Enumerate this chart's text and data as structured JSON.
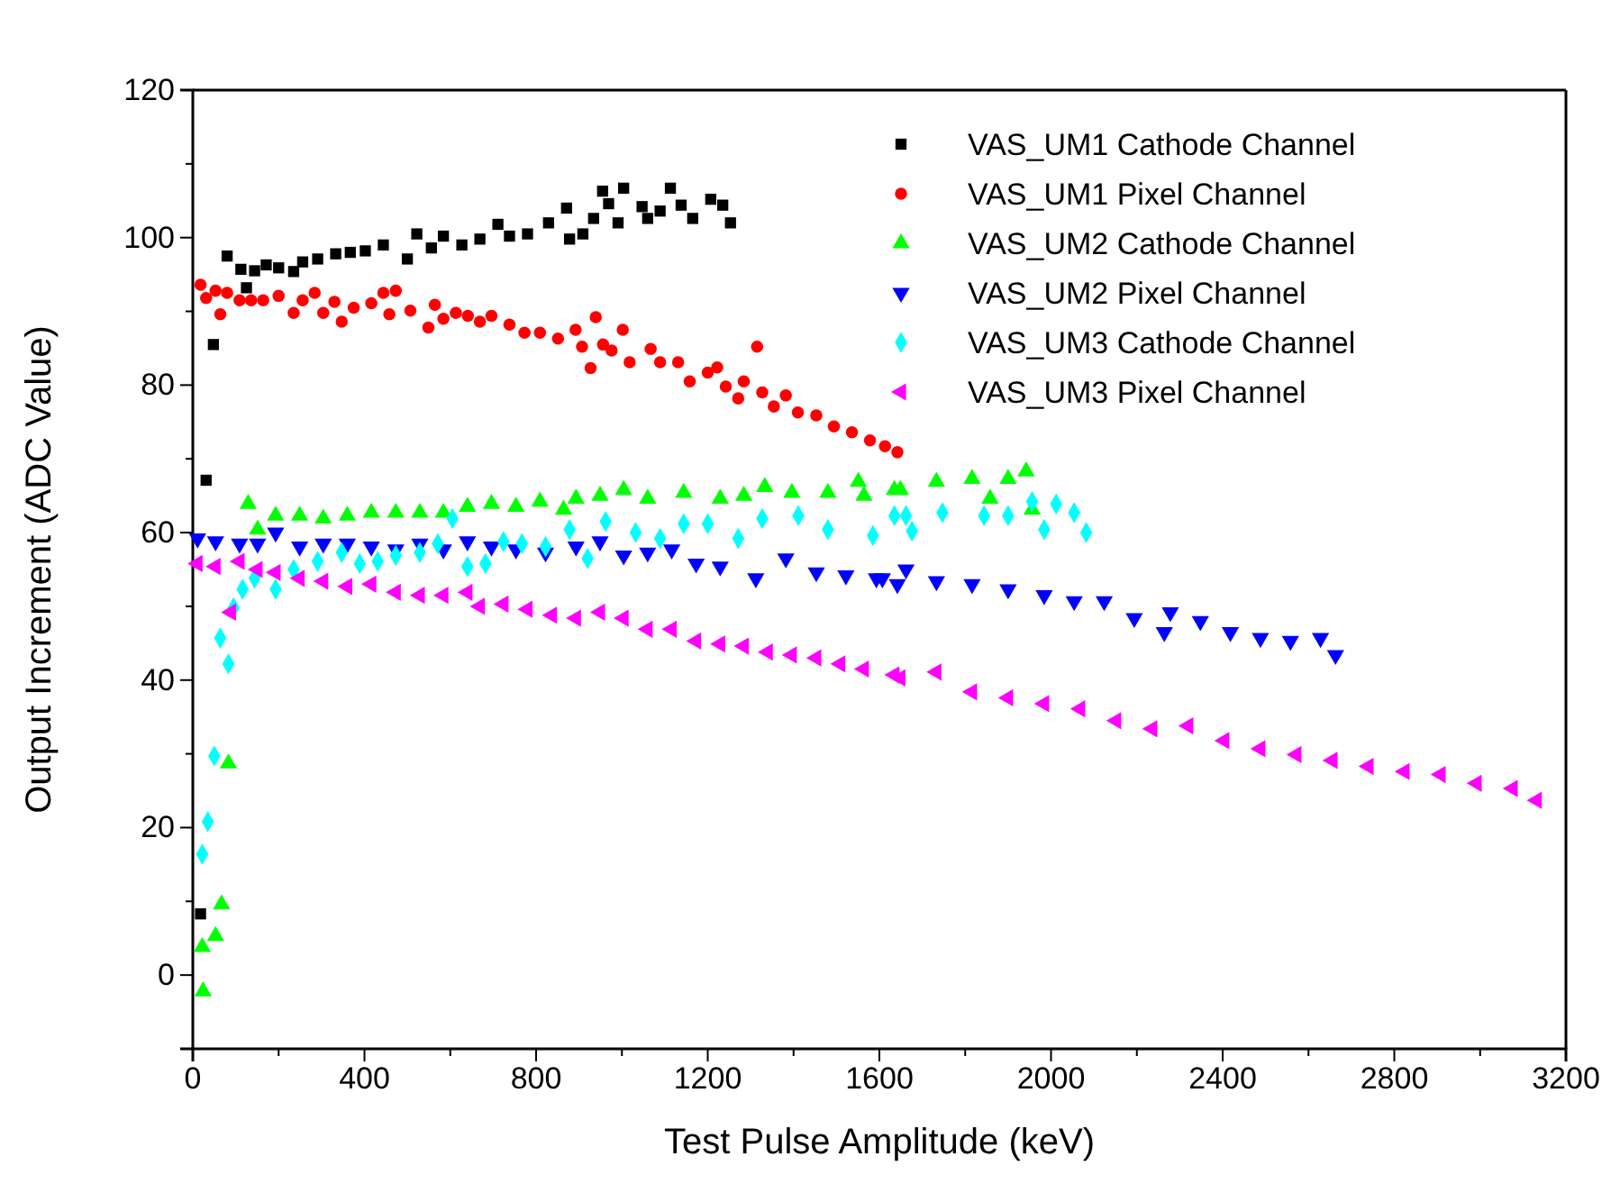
{
  "chart_data": {
    "type": "scatter",
    "xlabel": "Test Pulse Amplitude (keV)",
    "ylabel": "Output Increment (ADC Value)",
    "xlim": [
      0,
      3200
    ],
    "xticks": [
      0,
      {
        "value": 200,
        "label": null
      },
      400,
      {
        "value": 600,
        "label": null
      },
      800,
      {
        "value": 1000,
        "label": null
      },
      1200,
      {
        "value": 1400,
        "label": null
      },
      1600,
      {
        "value": 1800,
        "label": null
      },
      2000,
      {
        "value": 2200,
        "label": null
      },
      2400,
      {
        "value": 2600,
        "label": null
      },
      2800,
      {
        "value": 3000,
        "label": null
      },
      3200
    ],
    "ylim": [
      -10,
      120
    ],
    "yticks": [
      0,
      {
        "value": 10,
        "label": null
      },
      20,
      {
        "value": 30,
        "label": null
      },
      40,
      {
        "value": 50,
        "label": null
      },
      60,
      {
        "value": 70,
        "label": null
      },
      80,
      {
        "value": 90,
        "label": null
      },
      100,
      {
        "value": 110,
        "label": null
      },
      120
    ],
    "grid": false,
    "legend": "top right",
    "series": [
      {
        "name": "VAS_UM1 Cathode Channel",
        "color": "#000000",
        "marker": "square",
        "x": [
          18,
          31,
          48,
          80,
          112,
          125,
          144,
          171,
          200,
          235,
          256,
          291,
          333,
          367,
          402,
          444,
          500,
          522,
          556,
          584,
          627,
          669,
          711,
          738,
          780,
          829,
          871,
          878,
          909,
          934,
          955,
          969,
          991,
          1004,
          1047,
          1060,
          1089,
          1113,
          1138,
          1165,
          1207,
          1235,
          1253
        ],
        "values": [
          8.3,
          67.1,
          85.5,
          97.5,
          95.7,
          93.2,
          95.5,
          96.3,
          95.9,
          95.4,
          96.7,
          97.1,
          97.8,
          98,
          98.2,
          99,
          97.1,
          100.5,
          98.6,
          100.2,
          99,
          99.8,
          101.8,
          100.2,
          100.5,
          102,
          104,
          99.8,
          100.5,
          102.6,
          106.3,
          104.6,
          102,
          106.7,
          104.2,
          102.6,
          103.6,
          106.7,
          104.4,
          102.6,
          105.2,
          104.4,
          102
        ]
      },
      {
        "name": "VAS_UM1 Pixel Channel",
        "color": "#ff0000",
        "marker": "circle",
        "x": [
          18,
          31,
          53,
          64,
          80,
          109,
          136,
          164,
          200,
          235,
          256,
          284,
          304,
          330,
          347,
          375,
          416,
          444,
          458,
          473,
          507,
          549,
          564,
          584,
          613,
          641,
          669,
          696,
          738,
          773,
          809,
          851,
          892,
          907,
          927,
          939,
          956,
          976,
          1002,
          1018,
          1067,
          1089,
          1131,
          1158,
          1200,
          1222,
          1242,
          1271,
          1284,
          1315,
          1327,
          1354,
          1382,
          1410,
          1453,
          1494,
          1536,
          1578,
          1613,
          1642
        ],
        "values": [
          93.6,
          91.8,
          92.8,
          89.6,
          92.5,
          91.5,
          91.5,
          91.5,
          92.1,
          89.8,
          91.5,
          92.5,
          89.8,
          91.3,
          88.6,
          90.5,
          91.1,
          92.5,
          89.6,
          92.8,
          90.1,
          87.8,
          90.9,
          89,
          89.8,
          89.4,
          88.6,
          89.4,
          88.2,
          87.1,
          87.1,
          86.3,
          87.5,
          85.2,
          82.3,
          89.2,
          85.5,
          84.7,
          87.5,
          83.1,
          84.9,
          83.1,
          83.1,
          80.5,
          81.7,
          82.4,
          79.8,
          78.2,
          80.5,
          85.2,
          79,
          77.1,
          78.6,
          76.3,
          75.9,
          74.4,
          73.6,
          72.5,
          71.7,
          70.9
        ]
      },
      {
        "name": "VAS_UM2 Cathode Channel",
        "color": "#00ff00",
        "marker": "triangle",
        "x": [
          22,
          24,
          53,
          67,
          83,
          129,
          151,
          193,
          249,
          304,
          360,
          416,
          473,
          529,
          584,
          640,
          696,
          753,
          809,
          864,
          893,
          949,
          1004,
          1060,
          1144,
          1229,
          1284,
          1333,
          1396,
          1480,
          1551,
          1564,
          1635,
          1649,
          1733,
          1816,
          1858,
          1900,
          1942,
          1956
        ],
        "values": [
          3.8,
          -2.2,
          5.3,
          9.6,
          28.7,
          63.9,
          60.4,
          62.3,
          62.3,
          61.9,
          62.3,
          62.7,
          62.7,
          62.7,
          62.7,
          63.5,
          63.9,
          63.5,
          64.2,
          63.1,
          64.6,
          65,
          65.8,
          64.6,
          65.4,
          64.6,
          65,
          66.2,
          65.4,
          65.4,
          66.9,
          65,
          65.8,
          65.8,
          66.9,
          67.3,
          64.6,
          67.3,
          68.3,
          63.1
        ]
      },
      {
        "name": "VAS_UM2 Pixel Channel",
        "color": "#0000ff",
        "marker": "triangle-down",
        "x": [
          11,
          53,
          109,
          151,
          193,
          249,
          304,
          360,
          416,
          473,
          529,
          584,
          640,
          696,
          753,
          822,
          893,
          949,
          1004,
          1060,
          1116,
          1173,
          1229,
          1312,
          1382,
          1453,
          1522,
          1593,
          1607,
          1642,
          1662,
          1733,
          1816,
          1900,
          1984,
          2054,
          2124,
          2194,
          2264,
          2278,
          2348,
          2418,
          2488,
          2558,
          2628,
          2663
        ],
        "values": [
          59.2,
          58.8,
          58.5,
          58.5,
          60,
          58.1,
          58.5,
          58.5,
          58.1,
          57.7,
          58.5,
          57.7,
          58.8,
          58.1,
          57.7,
          57.3,
          58.1,
          58.8,
          56.9,
          57.3,
          57.7,
          55.8,
          55.4,
          53.8,
          56.5,
          54.6,
          54.2,
          53.8,
          53.8,
          53,
          55,
          53.4,
          53,
          52.3,
          51.5,
          50.7,
          50.7,
          48.4,
          46.5,
          49.2,
          48,
          46.5,
          45.7,
          45.3,
          45.7,
          43.4
        ]
      },
      {
        "name": "VAS_UM3 Cathode Channel",
        "color": "#00ffff",
        "marker": "diamond",
        "x": [
          22,
          35,
          50,
          64,
          83,
          95,
          116,
          144,
          193,
          235,
          291,
          347,
          389,
          431,
          473,
          529,
          571,
          605,
          640,
          682,
          724,
          767,
          822,
          878,
          920,
          962,
          1032,
          1089,
          1144,
          1200,
          1271,
          1327,
          1411,
          1480,
          1585,
          1635,
          1662,
          1676,
          1747,
          1844,
          1900,
          1956,
          1984,
          2012,
          2054,
          2082
        ],
        "values": [
          16.4,
          20.8,
          29.7,
          45.7,
          42.2,
          49.8,
          52.3,
          53.8,
          52.3,
          55,
          56.1,
          57.3,
          55.8,
          56.1,
          56.9,
          57.3,
          58.5,
          61.9,
          55.4,
          55.8,
          58.8,
          58.5,
          58.1,
          60.4,
          56.5,
          61.5,
          60,
          59.2,
          61.2,
          61.2,
          59.2,
          61.9,
          62.3,
          60.4,
          59.6,
          62.3,
          62.3,
          60.2,
          62.7,
          62.3,
          62.3,
          64.2,
          60.4,
          63.9,
          62.7,
          60
        ]
      },
      {
        "name": "VAS_UM3 Pixel Channel",
        "color": "#ff00ff",
        "marker": "triangle-left",
        "x": [
          11,
          53,
          89,
          109,
          151,
          193,
          249,
          304,
          360,
          416,
          473,
          529,
          584,
          640,
          669,
          724,
          780,
          837,
          893,
          949,
          1004,
          1060,
          1116,
          1173,
          1229,
          1284,
          1340,
          1396,
          1453,
          1509,
          1564,
          1635,
          1649,
          1733,
          1816,
          1900,
          1984,
          2068,
          2152,
          2236,
          2320,
          2404,
          2488,
          2572,
          2656,
          2740,
          2824,
          2908,
          2992,
          3076,
          3132
        ],
        "values": [
          55.8,
          55.4,
          49.2,
          56.1,
          55,
          54.6,
          53.8,
          53.4,
          52.7,
          53,
          51.9,
          51.5,
          51.5,
          51.9,
          50,
          50.3,
          49.6,
          48.8,
          48.4,
          49.2,
          48.4,
          46.9,
          46.9,
          45.3,
          44.9,
          44.6,
          43.8,
          43.4,
          43,
          42.2,
          41.5,
          40.7,
          40.3,
          41.1,
          38.4,
          37.6,
          36.8,
          36.1,
          34.5,
          33.4,
          33.8,
          31.8,
          30.7,
          29.9,
          29.1,
          28.3,
          27.6,
          27.2,
          26,
          25.3,
          23.7
        ]
      }
    ]
  }
}
